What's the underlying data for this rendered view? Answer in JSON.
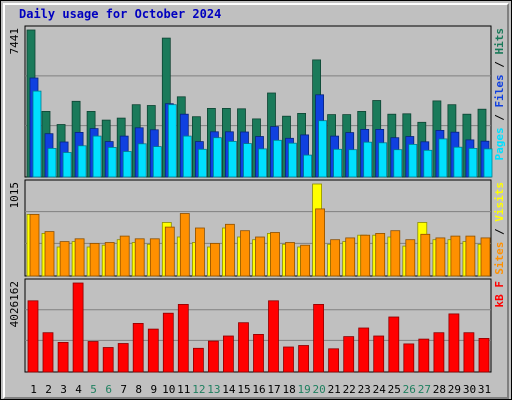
{
  "title": "Daily usage for October 2024",
  "colors": {
    "hits": "#1a7a5a",
    "files": "#1040e0",
    "pages": "#00e0ff",
    "visits": "#ffff00",
    "sites": "#ff9000",
    "kbytes": "#ff0000",
    "weekend_label": "#208060",
    "weekday_label": "#000000",
    "panel_bg": "#c0c0c0",
    "grid": "#808080"
  },
  "chart_data": {
    "type": "bar",
    "x": [
      "1",
      "2",
      "3",
      "4",
      "5",
      "6",
      "7",
      "8",
      "9",
      "10",
      "11",
      "12",
      "13",
      "14",
      "15",
      "16",
      "17",
      "18",
      "19",
      "20",
      "21",
      "22",
      "23",
      "24",
      "25",
      "26",
      "27",
      "28",
      "29",
      "30",
      "31"
    ],
    "weekend_days": [
      "5",
      "6",
      "12",
      "13",
      "19",
      "20",
      "26",
      "27"
    ],
    "panels": [
      {
        "name": "hits-files-pages",
        "ymax_label": "7441",
        "ylim": [
          0,
          7441
        ],
        "legend": [
          {
            "text": "Pages",
            "color": "#00e0ff"
          },
          {
            "text": " / ",
            "color": "#000000"
          },
          {
            "text": "Files",
            "color": "#1040e0"
          },
          {
            "text": " / ",
            "color": "#000000"
          },
          {
            "text": "Hits",
            "color": "#1a7a5a"
          }
        ],
        "series": [
          {
            "name": "Hits",
            "color": "#1a7a5a",
            "values": [
              7441,
              3320,
              2660,
              3830,
              3320,
              2880,
              2980,
              3660,
              3620,
              7030,
              4060,
              3050,
              3470,
              3470,
              3450,
              2940,
              4250,
              3080,
              3220,
              5930,
              3160,
              3160,
              3320,
              3870,
              3180,
              3200,
              2770,
              3850,
              3660,
              3180,
              3430
            ]
          },
          {
            "name": "Files",
            "color": "#1040e0",
            "values": [
              5010,
              2190,
              1770,
              2260,
              2450,
              1790,
              2070,
              2490,
              2390,
              3710,
              3180,
              1790,
              2290,
              2290,
              2280,
              2050,
              2550,
              1960,
              2130,
              4160,
              2070,
              2250,
              2410,
              2410,
              1990,
              2050,
              1780,
              2360,
              2270,
              1880,
              1810
            ]
          },
          {
            "name": "Pages",
            "color": "#00e0ff",
            "values": [
              4350,
              1450,
              1240,
              1580,
              2070,
              1500,
              1290,
              1680,
              1540,
              3660,
              2070,
              1400,
              1990,
              1800,
              1690,
              1420,
              1860,
              1710,
              1110,
              2850,
              1400,
              1380,
              1760,
              1730,
              1380,
              1650,
              1350,
              1930,
              1510,
              1450,
              1420
            ]
          }
        ]
      },
      {
        "name": "visits-sites",
        "ymax_label": "1015",
        "ylim": [
          0,
          1015
        ],
        "legend": [
          {
            "text": "Sites",
            "color": "#ff9000"
          },
          {
            "text": " / ",
            "color": "#000000"
          },
          {
            "text": "Visits",
            "color": "#ffff00"
          }
        ],
        "series": [
          {
            "name": "Visits",
            "color": "#ffff00",
            "values": [
              680,
              470,
              320,
              380,
              320,
              340,
              400,
              370,
              350,
              590,
              430,
              370,
              320,
              530,
              430,
              400,
              470,
              350,
              320,
              1015,
              350,
              380,
              450,
              450,
              430,
              330,
              590,
              400,
              400,
              380,
              350
            ]
          },
          {
            "name": "Sites",
            "color": "#ff9000",
            "values": [
              680,
              490,
              380,
              410,
              360,
              370,
              440,
              410,
              410,
              540,
              690,
              530,
              360,
              570,
              500,
              430,
              480,
              370,
              340,
              740,
              400,
              420,
              450,
              470,
              500,
              400,
              460,
              420,
              440,
              440,
              420
            ]
          }
        ]
      },
      {
        "name": "kbytes",
        "ymax_label": "4026162",
        "ylim": [
          0,
          4026162
        ],
        "legend": [
          {
            "text": "kB F",
            "color": "#ff0000"
          }
        ],
        "series": [
          {
            "name": "kB F",
            "color": "#ff0000",
            "values": [
              3220000,
              1780000,
              1340000,
              4026162,
              1380000,
              1110000,
              1290000,
              2200000,
              1940000,
              2660000,
              3060000,
              1070000,
              1400000,
              1630000,
              2230000,
              1700000,
              3220000,
              1130000,
              1200000,
              3060000,
              1050000,
              1600000,
              1990000,
              1630000,
              2490000,
              1270000,
              1490000,
              1780000,
              2630000,
              1780000,
              1520000
            ]
          }
        ]
      }
    ]
  }
}
